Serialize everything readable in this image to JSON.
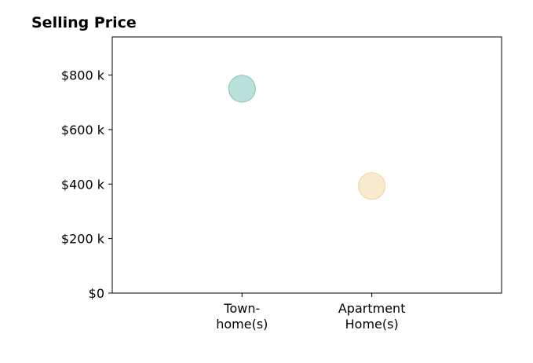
{
  "chart_data": {
    "type": "scatter",
    "title": "Selling Price",
    "xlabel": "",
    "ylabel": "",
    "categories": [
      [
        "Town-",
        "home(s)"
      ],
      [
        "Apartment",
        "Home(s)"
      ]
    ],
    "y_ticks": [
      {
        "value": 0,
        "label": "$0"
      },
      {
        "value": 200000,
        "label": "$200 k"
      },
      {
        "value": 400000,
        "label": "$400 k"
      },
      {
        "value": 600000,
        "label": "$600 k"
      },
      {
        "value": 800000,
        "label": "$800 k"
      }
    ],
    "ylim": [
      0,
      940000
    ],
    "xlim": [
      -1,
      2
    ],
    "points": [
      {
        "category_index": 0,
        "value": 750000,
        "color": "#a8d8d0",
        "edge": "#8fc9bf"
      },
      {
        "category_index": 1,
        "value": 393000,
        "color": "#f8e5c0",
        "edge": "#f2d9a8"
      }
    ],
    "grid": false,
    "legend": "none"
  }
}
